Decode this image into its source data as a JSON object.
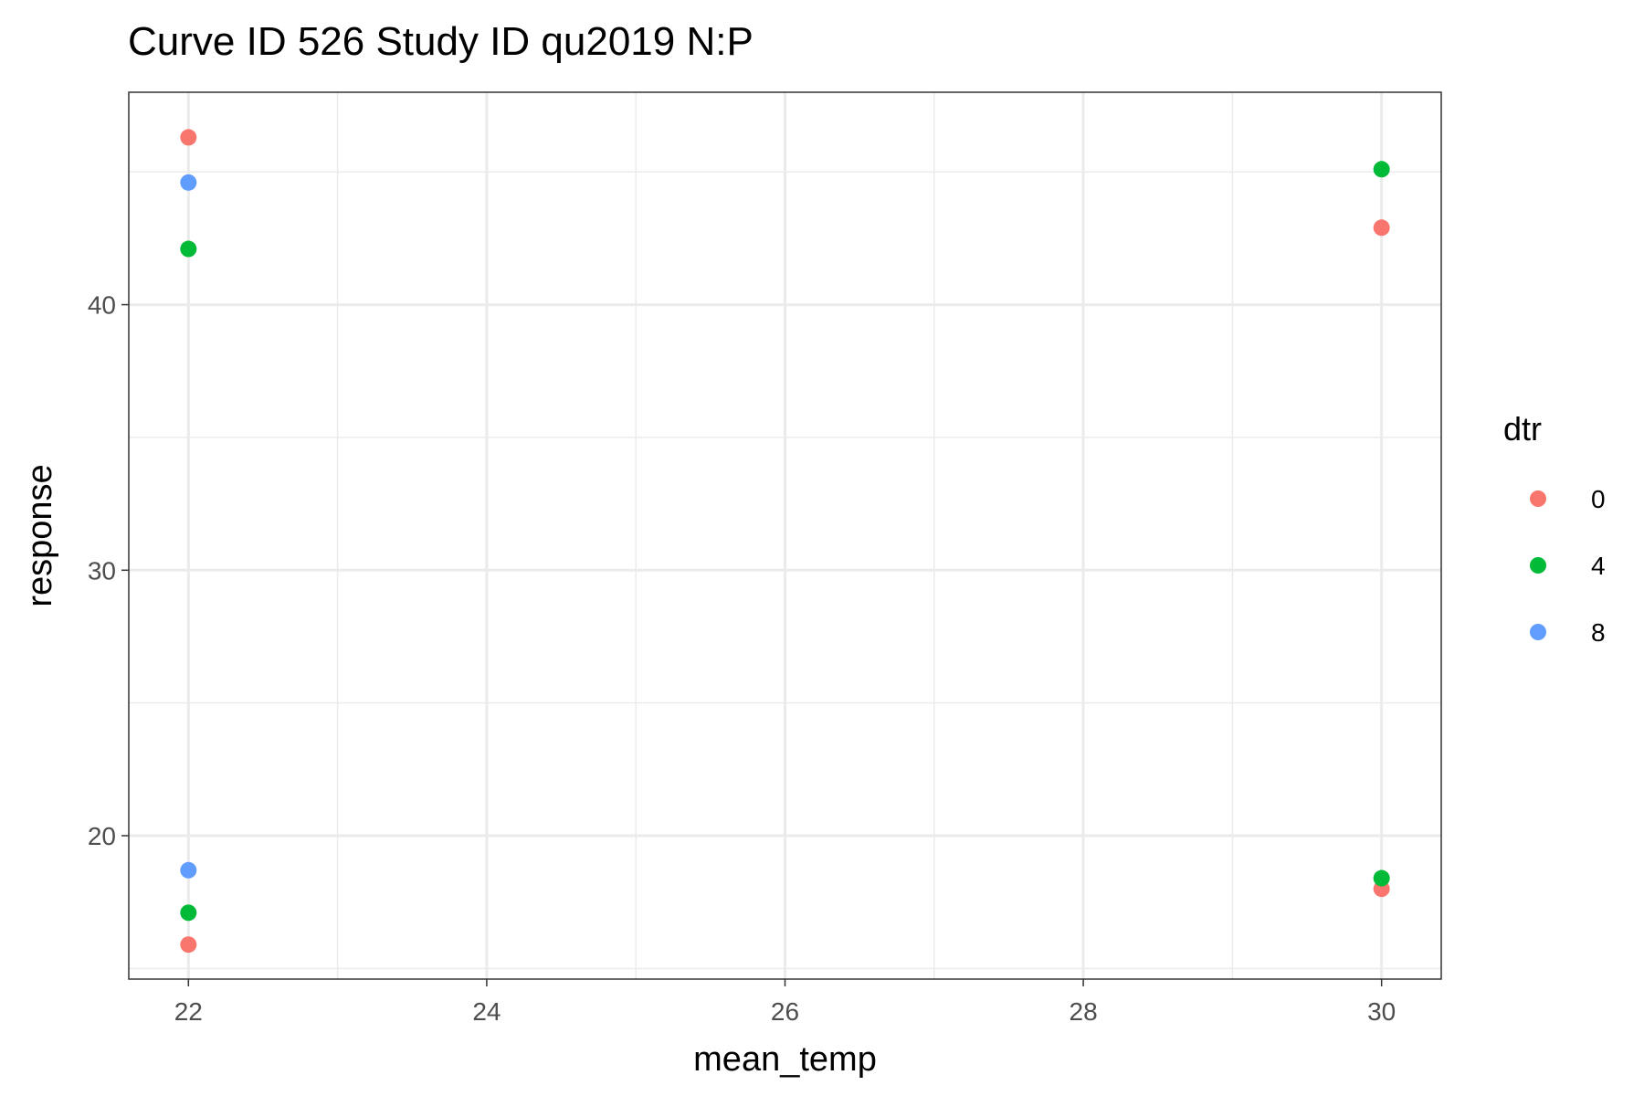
{
  "chart_data": {
    "type": "scatter",
    "title": "Curve ID 526 Study ID qu2019 N:P",
    "xlabel": "mean_temp",
    "ylabel": "response",
    "xlim": [
      21.6,
      30.4
    ],
    "ylim": [
      14.6,
      48.0
    ],
    "x_ticks": [
      22,
      24,
      26,
      28,
      30
    ],
    "x_minor": [
      23,
      25,
      27,
      29
    ],
    "y_ticks": [
      20,
      30,
      40
    ],
    "y_minor": [
      15,
      25,
      35,
      45
    ],
    "grid": true,
    "legend": {
      "title": "dtr",
      "placement": "right"
    },
    "series": [
      {
        "name": "0",
        "color": "#F8766D",
        "points": [
          [
            22,
            46.3
          ],
          [
            22,
            15.9
          ],
          [
            30,
            42.9
          ],
          [
            30,
            18.0
          ]
        ]
      },
      {
        "name": "4",
        "color": "#00BA38",
        "points": [
          [
            22,
            42.1
          ],
          [
            22,
            17.1
          ],
          [
            30,
            45.1
          ],
          [
            30,
            18.4
          ]
        ]
      },
      {
        "name": "8",
        "color": "#619CFF",
        "points": [
          [
            22,
            44.6
          ],
          [
            22,
            18.7
          ]
        ]
      }
    ]
  }
}
